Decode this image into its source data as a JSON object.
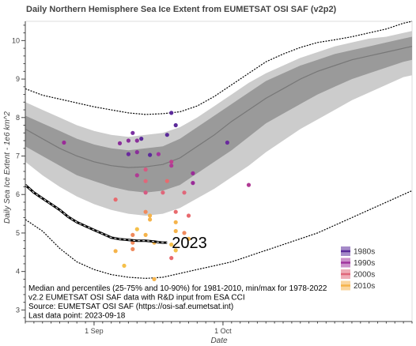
{
  "chart_data": {
    "type": "line",
    "title": "Daily Northern Hemisphere Sea Ice Extent from EUMETSAT OSI SAF (v2p2)",
    "xlabel": "Date",
    "ylabel": "Daily Sea Ice Extent - 1e6 km^2",
    "xlim_day_of_year": [
      228,
      318
    ],
    "ylim": [
      2.7,
      10.5
    ],
    "yticks": [
      3,
      4,
      5,
      6,
      7,
      8,
      9,
      10
    ],
    "xticks": [
      {
        "label": "1 Sep",
        "day_of_year": 244
      },
      {
        "label": "1 Oct",
        "day_of_year": 274
      }
    ],
    "grid": false,
    "legend_position": "bottom-right",
    "bands": {
      "day_of_year": [
        228,
        232,
        236,
        240,
        244,
        248,
        252,
        256,
        260,
        264,
        268,
        272,
        276,
        280,
        284,
        288,
        292,
        296,
        300,
        304,
        308,
        312,
        316,
        318
      ],
      "median": [
        7.7,
        7.45,
        7.2,
        7.0,
        6.85,
        6.75,
        6.7,
        6.72,
        6.78,
        6.95,
        7.25,
        7.55,
        7.9,
        8.2,
        8.5,
        8.75,
        9.0,
        9.2,
        9.35,
        9.5,
        9.6,
        9.7,
        9.8,
        9.85
      ],
      "p25": [
        7.25,
        7.0,
        6.75,
        6.5,
        6.35,
        6.2,
        6.1,
        6.05,
        6.1,
        6.25,
        6.55,
        6.85,
        7.15,
        7.5,
        7.85,
        8.1,
        8.35,
        8.6,
        8.8,
        9.0,
        9.15,
        9.3,
        9.45,
        9.5
      ],
      "p75": [
        8.05,
        7.85,
        7.65,
        7.45,
        7.3,
        7.2,
        7.15,
        7.2,
        7.25,
        7.45,
        7.75,
        8.05,
        8.35,
        8.65,
        8.95,
        9.15,
        9.35,
        9.5,
        9.65,
        9.75,
        9.85,
        9.95,
        10.05,
        10.1
      ],
      "p10": [
        6.85,
        6.5,
        6.2,
        5.95,
        5.75,
        5.6,
        5.5,
        5.45,
        5.5,
        5.65,
        5.9,
        6.15,
        6.45,
        6.75,
        7.1,
        7.4,
        7.7,
        7.95,
        8.2,
        8.45,
        8.65,
        8.85,
        9.05,
        9.1
      ],
      "p90": [
        8.4,
        8.2,
        8.0,
        7.8,
        7.65,
        7.55,
        7.5,
        7.55,
        7.6,
        7.75,
        8.0,
        8.3,
        8.6,
        8.9,
        9.15,
        9.35,
        9.55,
        9.7,
        9.85,
        9.95,
        10.05,
        10.1,
        10.2,
        10.25
      ],
      "max": [
        8.75,
        8.58,
        8.48,
        8.38,
        8.28,
        8.2,
        8.12,
        8.08,
        8.1,
        8.15,
        8.3,
        8.55,
        8.85,
        9.15,
        9.45,
        9.65,
        9.82,
        9.95,
        10.02,
        10.1,
        10.2,
        10.3,
        10.45,
        10.5
      ],
      "min": [
        5.35,
        5.05,
        4.6,
        4.25,
        4.05,
        3.92,
        3.85,
        3.82,
        3.85,
        3.95,
        4.05,
        4.15,
        4.25,
        4.4,
        4.55,
        4.7,
        4.85,
        5.0,
        5.2,
        5.4,
        5.6,
        5.8,
        6.0,
        6.1
      ]
    },
    "series": [
      {
        "name": "2023",
        "x_day_of_year": [
          228,
          230,
          232,
          234,
          236,
          238,
          240,
          242,
          244,
          246,
          248,
          250,
          252,
          254,
          256,
          258,
          259,
          260,
          261
        ],
        "values": [
          6.25,
          6.05,
          5.9,
          5.75,
          5.6,
          5.42,
          5.28,
          5.18,
          5.08,
          4.98,
          4.88,
          4.84,
          4.82,
          4.8,
          4.8,
          4.78,
          4.76,
          4.75,
          4.75
        ]
      }
    ],
    "minima_legend": [
      {
        "label": "1980s",
        "color": "#5b2a9a"
      },
      {
        "label": "1990s",
        "color": "#a0349e"
      },
      {
        "label": "2000s",
        "color": "#e0677a"
      },
      {
        "label": "2010s",
        "color": "#f5b34a"
      }
    ],
    "minima_points": [
      {
        "day_of_year": 237,
        "value": 7.35,
        "color": "#9a2b98"
      },
      {
        "day_of_year": 250,
        "value": 7.33,
        "color": "#8a2f9a"
      },
      {
        "day_of_year": 252,
        "value": 7.4,
        "color": "#8a2f9a"
      },
      {
        "day_of_year": 253,
        "value": 7.6,
        "color": "#7a2fa0"
      },
      {
        "day_of_year": 254,
        "value": 7.4,
        "color": "#8a2f9a"
      },
      {
        "day_of_year": 252,
        "value": 7.05,
        "color": "#6a2a9e"
      },
      {
        "day_of_year": 254,
        "value": 7.1,
        "color": "#8a2f9a"
      },
      {
        "day_of_year": 255,
        "value": 7.45,
        "color": "#5b2a9a"
      },
      {
        "day_of_year": 257,
        "value": 7.03,
        "color": "#5b2a9a"
      },
      {
        "day_of_year": 261,
        "value": 7.55,
        "color": "#5b2a9a"
      },
      {
        "day_of_year": 262,
        "value": 8.12,
        "color": "#5b2a9a"
      },
      {
        "day_of_year": 263,
        "value": 7.8,
        "color": "#5b2a9a"
      },
      {
        "day_of_year": 275,
        "value": 7.35,
        "color": "#6a2a9e"
      },
      {
        "day_of_year": 259,
        "value": 7.05,
        "color": "#a0349e"
      },
      {
        "day_of_year": 262,
        "value": 6.85,
        "color": "#c0408e"
      },
      {
        "day_of_year": 262,
        "value": 6.75,
        "color": "#b03a94"
      },
      {
        "day_of_year": 254,
        "value": 6.5,
        "color": "#b03a94"
      },
      {
        "day_of_year": 256,
        "value": 6.65,
        "color": "#d65a82"
      },
      {
        "day_of_year": 256,
        "value": 6.35,
        "color": "#e0677a"
      },
      {
        "day_of_year": 256,
        "value": 6.05,
        "color": "#d65a82"
      },
      {
        "day_of_year": 260,
        "value": 6.05,
        "color": "#e0677a"
      },
      {
        "day_of_year": 261,
        "value": 6.35,
        "color": "#e86a6e"
      },
      {
        "day_of_year": 265,
        "value": 6.05,
        "color": "#e0677a"
      },
      {
        "day_of_year": 267,
        "value": 6.55,
        "color": "#9a2b98"
      },
      {
        "day_of_year": 267,
        "value": 6.3,
        "color": "#9a2b98"
      },
      {
        "day_of_year": 280,
        "value": 6.25,
        "color": "#b03a94"
      },
      {
        "day_of_year": 249,
        "value": 5.87,
        "color": "#e86a6e"
      },
      {
        "day_of_year": 256,
        "value": 5.55,
        "color": "#f08a5c"
      },
      {
        "day_of_year": 257,
        "value": 5.45,
        "color": "#f5b34a"
      },
      {
        "day_of_year": 257,
        "value": 5.35,
        "color": "#f5b34a"
      },
      {
        "day_of_year": 263,
        "value": 5.55,
        "color": "#e86a6e"
      },
      {
        "day_of_year": 266,
        "value": 5.45,
        "color": "#e86a6e"
      },
      {
        "day_of_year": 254,
        "value": 5.1,
        "color": "#f5c04a"
      },
      {
        "day_of_year": 253,
        "value": 4.95,
        "color": "#f08a5c"
      },
      {
        "day_of_year": 256,
        "value": 4.95,
        "color": "#f5b34a"
      },
      {
        "day_of_year": 263,
        "value": 5.28,
        "color": "#f5b34a"
      },
      {
        "day_of_year": 263,
        "value": 5.05,
        "color": "#f5b34a"
      },
      {
        "day_of_year": 265,
        "value": 5.0,
        "color": "#f08a5c"
      },
      {
        "day_of_year": 266,
        "value": 4.85,
        "color": "#f5b34a"
      },
      {
        "day_of_year": 258,
        "value": 4.75,
        "color": "#f5b34a"
      },
      {
        "day_of_year": 262,
        "value": 4.7,
        "color": "#f5c04a"
      },
      {
        "day_of_year": 253,
        "value": 4.75,
        "color": "#f08a5c"
      },
      {
        "day_of_year": 249,
        "value": 4.53,
        "color": "#f5b34a"
      },
      {
        "day_of_year": 253,
        "value": 4.58,
        "color": "#f08a5c"
      },
      {
        "day_of_year": 263,
        "value": 4.55,
        "color": "#f5c04a"
      },
      {
        "day_of_year": 262,
        "value": 4.35,
        "color": "#e86a6e"
      },
      {
        "day_of_year": 251,
        "value": 4.15,
        "color": "#f5c04a"
      },
      {
        "day_of_year": 258,
        "value": 3.8,
        "color": "#f5b34a"
      }
    ],
    "annotations": [
      "Median and percentiles (25-75% and 10-90%) for 1981-2010, min/max for 1978-2022",
      "v2.2 EUMETSAT OSI SAF data with R&D input from ESA CCI",
      "Source: EUMETSAT OSI SAF (https://osi-saf.eumetsat.int)",
      "Last data point: 2023-09-18"
    ],
    "colors": {
      "outer_band": "#cccccc",
      "inner_band": "#9a9a9a",
      "median_line": "#777777",
      "minmax_line": "#000000",
      "current_year": "#000000"
    }
  }
}
